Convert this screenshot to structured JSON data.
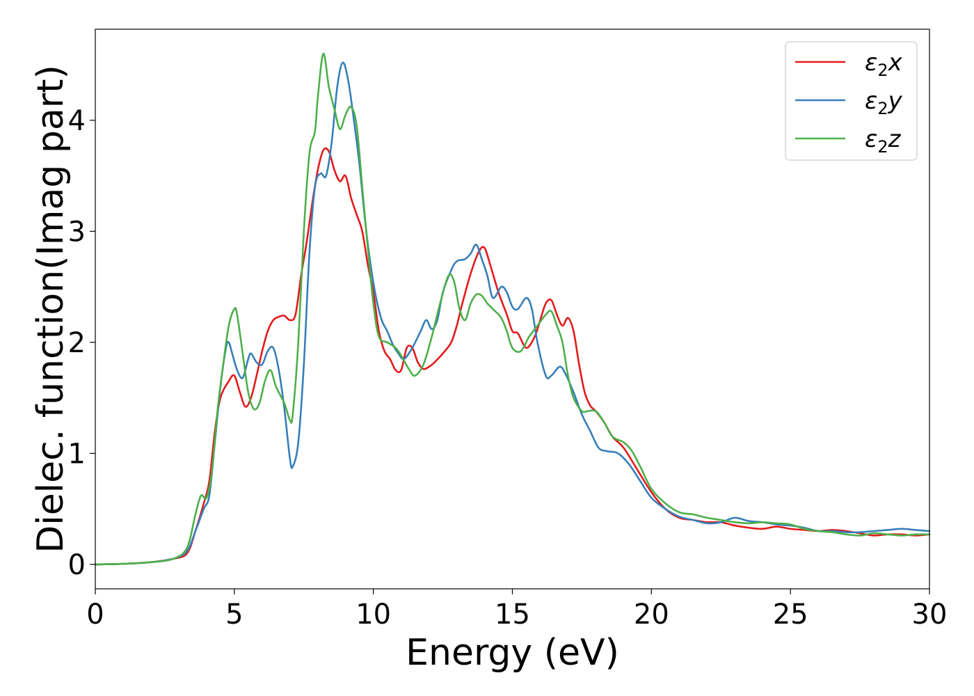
{
  "chart_data": {
    "type": "line",
    "xlabel": "Energy (eV)",
    "ylabel": "Dielec. function(Imag part)",
    "xlim": [
      0,
      30
    ],
    "ylim": [
      -0.22,
      4.82
    ],
    "xticks": [
      0,
      5,
      10,
      15,
      20,
      25,
      30
    ],
    "yticks": [
      0,
      1,
      2,
      3,
      4
    ],
    "grid": false,
    "legend_position": "top-right",
    "series": [
      {
        "name": "ε2x",
        "name_base": "ε",
        "name_sub": "2",
        "name_var": "x",
        "color": "#e41a1c",
        "points": [
          [
            0,
            0
          ],
          [
            1,
            0.005
          ],
          [
            2,
            0.02
          ],
          [
            2.8,
            0.05
          ],
          [
            3.3,
            0.1
          ],
          [
            3.6,
            0.3
          ],
          [
            3.9,
            0.55
          ],
          [
            4.1,
            0.75
          ],
          [
            4.3,
            1.2
          ],
          [
            4.5,
            1.5
          ],
          [
            4.8,
            1.65
          ],
          [
            5.0,
            1.7
          ],
          [
            5.2,
            1.55
          ],
          [
            5.4,
            1.42
          ],
          [
            5.6,
            1.5
          ],
          [
            5.8,
            1.7
          ],
          [
            6.0,
            1.92
          ],
          [
            6.2,
            2.1
          ],
          [
            6.4,
            2.2
          ],
          [
            6.6,
            2.23
          ],
          [
            6.8,
            2.24
          ],
          [
            7.0,
            2.2
          ],
          [
            7.2,
            2.25
          ],
          [
            7.4,
            2.6
          ],
          [
            7.6,
            2.9
          ],
          [
            7.8,
            3.25
          ],
          [
            8.0,
            3.55
          ],
          [
            8.2,
            3.73
          ],
          [
            8.4,
            3.72
          ],
          [
            8.6,
            3.55
          ],
          [
            8.8,
            3.45
          ],
          [
            9.0,
            3.5
          ],
          [
            9.2,
            3.3
          ],
          [
            9.4,
            3.15
          ],
          [
            9.6,
            3.0
          ],
          [
            9.8,
            2.7
          ],
          [
            10.0,
            2.45
          ],
          [
            10.2,
            2.1
          ],
          [
            10.4,
            1.92
          ],
          [
            10.6,
            1.85
          ],
          [
            10.8,
            1.75
          ],
          [
            11.0,
            1.75
          ],
          [
            11.2,
            1.95
          ],
          [
            11.4,
            1.95
          ],
          [
            11.6,
            1.82
          ],
          [
            11.8,
            1.76
          ],
          [
            12.0,
            1.78
          ],
          [
            12.2,
            1.82
          ],
          [
            12.5,
            1.9
          ],
          [
            12.8,
            2.0
          ],
          [
            13.0,
            2.15
          ],
          [
            13.2,
            2.35
          ],
          [
            13.5,
            2.62
          ],
          [
            13.8,
            2.82
          ],
          [
            14.0,
            2.85
          ],
          [
            14.2,
            2.7
          ],
          [
            14.5,
            2.45
          ],
          [
            14.8,
            2.25
          ],
          [
            15.0,
            2.1
          ],
          [
            15.2,
            2.08
          ],
          [
            15.5,
            1.95
          ],
          [
            15.8,
            2.05
          ],
          [
            16.0,
            2.2
          ],
          [
            16.2,
            2.35
          ],
          [
            16.4,
            2.38
          ],
          [
            16.6,
            2.25
          ],
          [
            16.8,
            2.15
          ],
          [
            17.0,
            2.22
          ],
          [
            17.2,
            2.1
          ],
          [
            17.4,
            1.8
          ],
          [
            17.6,
            1.55
          ],
          [
            17.8,
            1.43
          ],
          [
            18.0,
            1.38
          ],
          [
            18.3,
            1.28
          ],
          [
            18.6,
            1.15
          ],
          [
            19.0,
            1.05
          ],
          [
            19.5,
            0.85
          ],
          [
            20.0,
            0.65
          ],
          [
            20.5,
            0.5
          ],
          [
            21.0,
            0.42
          ],
          [
            21.5,
            0.4
          ],
          [
            22.0,
            0.38
          ],
          [
            22.5,
            0.38
          ],
          [
            23.0,
            0.35
          ],
          [
            23.5,
            0.33
          ],
          [
            24.0,
            0.32
          ],
          [
            24.5,
            0.34
          ],
          [
            25.0,
            0.32
          ],
          [
            25.5,
            0.31
          ],
          [
            26.0,
            0.3
          ],
          [
            26.5,
            0.31
          ],
          [
            27.0,
            0.3
          ],
          [
            27.5,
            0.28
          ],
          [
            28.0,
            0.26
          ],
          [
            28.5,
            0.27
          ],
          [
            29.0,
            0.27
          ],
          [
            29.5,
            0.26
          ],
          [
            30,
            0.27
          ]
        ]
      },
      {
        "name": "ε2y",
        "name_base": "ε",
        "name_sub": "2",
        "name_var": "y",
        "color": "#377eb8",
        "points": [
          [
            0,
            0
          ],
          [
            1,
            0.005
          ],
          [
            2,
            0.02
          ],
          [
            2.8,
            0.05
          ],
          [
            3.3,
            0.12
          ],
          [
            3.6,
            0.3
          ],
          [
            3.9,
            0.5
          ],
          [
            4.1,
            0.62
          ],
          [
            4.3,
            1.1
          ],
          [
            4.5,
            1.6
          ],
          [
            4.7,
            1.95
          ],
          [
            4.8,
            2.0
          ],
          [
            4.9,
            1.92
          ],
          [
            5.1,
            1.75
          ],
          [
            5.3,
            1.68
          ],
          [
            5.5,
            1.85
          ],
          [
            5.6,
            1.9
          ],
          [
            5.8,
            1.82
          ],
          [
            6.0,
            1.8
          ],
          [
            6.2,
            1.92
          ],
          [
            6.4,
            1.95
          ],
          [
            6.6,
            1.75
          ],
          [
            6.8,
            1.4
          ],
          [
            7.0,
            0.95
          ],
          [
            7.1,
            0.88
          ],
          [
            7.3,
            1.1
          ],
          [
            7.5,
            1.8
          ],
          [
            7.7,
            2.8
          ],
          [
            7.9,
            3.4
          ],
          [
            8.1,
            3.52
          ],
          [
            8.3,
            3.5
          ],
          [
            8.5,
            3.8
          ],
          [
            8.7,
            4.3
          ],
          [
            8.9,
            4.52
          ],
          [
            9.1,
            4.35
          ],
          [
            9.3,
            4.0
          ],
          [
            9.5,
            3.6
          ],
          [
            9.7,
            3.1
          ],
          [
            9.9,
            2.7
          ],
          [
            10.1,
            2.4
          ],
          [
            10.3,
            2.2
          ],
          [
            10.5,
            2.1
          ],
          [
            10.7,
            1.98
          ],
          [
            10.9,
            1.9
          ],
          [
            11.1,
            1.85
          ],
          [
            11.4,
            1.95
          ],
          [
            11.7,
            2.1
          ],
          [
            11.9,
            2.2
          ],
          [
            12.1,
            2.12
          ],
          [
            12.3,
            2.2
          ],
          [
            12.5,
            2.45
          ],
          [
            12.8,
            2.65
          ],
          [
            13.0,
            2.73
          ],
          [
            13.3,
            2.75
          ],
          [
            13.5,
            2.8
          ],
          [
            13.7,
            2.88
          ],
          [
            13.9,
            2.75
          ],
          [
            14.1,
            2.6
          ],
          [
            14.3,
            2.4
          ],
          [
            14.6,
            2.5
          ],
          [
            14.8,
            2.45
          ],
          [
            15.0,
            2.32
          ],
          [
            15.2,
            2.3
          ],
          [
            15.5,
            2.4
          ],
          [
            15.7,
            2.3
          ],
          [
            15.9,
            2.0
          ],
          [
            16.2,
            1.7
          ],
          [
            16.4,
            1.7
          ],
          [
            16.7,
            1.78
          ],
          [
            16.9,
            1.72
          ],
          [
            17.2,
            1.55
          ],
          [
            17.5,
            1.35
          ],
          [
            17.8,
            1.2
          ],
          [
            18.1,
            1.05
          ],
          [
            18.4,
            1.02
          ],
          [
            18.8,
            1.0
          ],
          [
            19.2,
            0.9
          ],
          [
            19.6,
            0.75
          ],
          [
            20.0,
            0.6
          ],
          [
            20.5,
            0.5
          ],
          [
            21.0,
            0.43
          ],
          [
            21.5,
            0.4
          ],
          [
            22.0,
            0.37
          ],
          [
            22.5,
            0.38
          ],
          [
            23.0,
            0.42
          ],
          [
            23.5,
            0.39
          ],
          [
            24.0,
            0.38
          ],
          [
            24.5,
            0.36
          ],
          [
            25.0,
            0.35
          ],
          [
            25.5,
            0.33
          ],
          [
            26.0,
            0.3
          ],
          [
            26.5,
            0.3
          ],
          [
            27.0,
            0.29
          ],
          [
            27.5,
            0.29
          ],
          [
            28.0,
            0.3
          ],
          [
            28.5,
            0.31
          ],
          [
            29.0,
            0.32
          ],
          [
            29.5,
            0.31
          ],
          [
            30,
            0.3
          ]
        ]
      },
      {
        "name": "ε2z",
        "name_base": "ε",
        "name_sub": "2",
        "name_var": "z",
        "color": "#4daf4a",
        "points": [
          [
            0,
            0
          ],
          [
            1,
            0.005
          ],
          [
            2,
            0.02
          ],
          [
            2.8,
            0.05
          ],
          [
            3.3,
            0.15
          ],
          [
            3.6,
            0.45
          ],
          [
            3.8,
            0.62
          ],
          [
            4.0,
            0.6
          ],
          [
            4.2,
            0.85
          ],
          [
            4.4,
            1.4
          ],
          [
            4.6,
            1.8
          ],
          [
            4.8,
            2.15
          ],
          [
            5.0,
            2.3
          ],
          [
            5.1,
            2.25
          ],
          [
            5.3,
            1.9
          ],
          [
            5.5,
            1.55
          ],
          [
            5.7,
            1.4
          ],
          [
            5.9,
            1.45
          ],
          [
            6.1,
            1.65
          ],
          [
            6.3,
            1.75
          ],
          [
            6.5,
            1.6
          ],
          [
            6.8,
            1.45
          ],
          [
            7.0,
            1.3
          ],
          [
            7.1,
            1.35
          ],
          [
            7.3,
            2.0
          ],
          [
            7.5,
            3.0
          ],
          [
            7.7,
            3.7
          ],
          [
            7.9,
            3.9
          ],
          [
            8.0,
            4.2
          ],
          [
            8.2,
            4.6
          ],
          [
            8.4,
            4.3
          ],
          [
            8.6,
            4.1
          ],
          [
            8.8,
            3.92
          ],
          [
            9.0,
            4.05
          ],
          [
            9.2,
            4.12
          ],
          [
            9.4,
            3.95
          ],
          [
            9.6,
            3.4
          ],
          [
            9.8,
            2.85
          ],
          [
            10.0,
            2.35
          ],
          [
            10.2,
            2.05
          ],
          [
            10.5,
            2.0
          ],
          [
            10.8,
            1.95
          ],
          [
            11.0,
            1.88
          ],
          [
            11.3,
            1.75
          ],
          [
            11.5,
            1.7
          ],
          [
            11.8,
            1.8
          ],
          [
            12.1,
            2.05
          ],
          [
            12.4,
            2.35
          ],
          [
            12.7,
            2.6
          ],
          [
            12.9,
            2.55
          ],
          [
            13.1,
            2.3
          ],
          [
            13.3,
            2.2
          ],
          [
            13.5,
            2.35
          ],
          [
            13.7,
            2.43
          ],
          [
            13.9,
            2.42
          ],
          [
            14.1,
            2.35
          ],
          [
            14.3,
            2.3
          ],
          [
            14.6,
            2.22
          ],
          [
            14.8,
            2.1
          ],
          [
            15.0,
            1.95
          ],
          [
            15.3,
            1.92
          ],
          [
            15.6,
            2.05
          ],
          [
            15.9,
            2.15
          ],
          [
            16.2,
            2.25
          ],
          [
            16.4,
            2.28
          ],
          [
            16.6,
            2.15
          ],
          [
            16.8,
            2.0
          ],
          [
            17.0,
            1.7
          ],
          [
            17.2,
            1.5
          ],
          [
            17.5,
            1.38
          ],
          [
            17.7,
            1.38
          ],
          [
            18.0,
            1.38
          ],
          [
            18.3,
            1.28
          ],
          [
            18.6,
            1.15
          ],
          [
            19.0,
            1.1
          ],
          [
            19.3,
            1.02
          ],
          [
            19.6,
            0.88
          ],
          [
            20.0,
            0.68
          ],
          [
            20.5,
            0.55
          ],
          [
            21.0,
            0.47
          ],
          [
            21.5,
            0.45
          ],
          [
            22.0,
            0.42
          ],
          [
            22.5,
            0.4
          ],
          [
            23.0,
            0.38
          ],
          [
            23.5,
            0.37
          ],
          [
            24.0,
            0.38
          ],
          [
            24.5,
            0.37
          ],
          [
            25.0,
            0.36
          ],
          [
            25.5,
            0.32
          ],
          [
            26.0,
            0.3
          ],
          [
            26.5,
            0.29
          ],
          [
            27.0,
            0.27
          ],
          [
            27.5,
            0.26
          ],
          [
            28.0,
            0.28
          ],
          [
            28.5,
            0.27
          ],
          [
            29.0,
            0.26
          ],
          [
            29.5,
            0.27
          ],
          [
            30,
            0.27
          ]
        ]
      }
    ]
  }
}
